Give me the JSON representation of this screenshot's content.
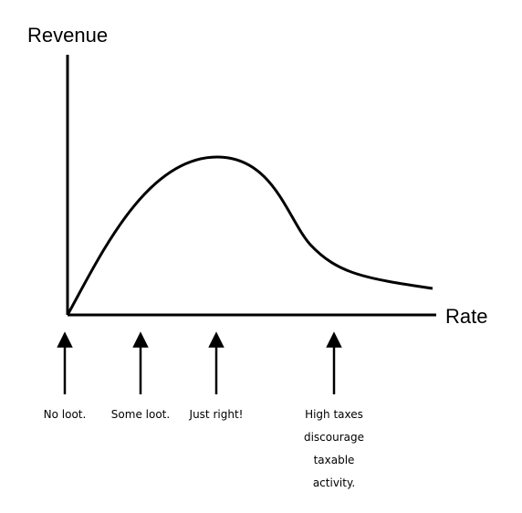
{
  "axes": {
    "y_label": "Revenue",
    "x_label": "Rate"
  },
  "annotations": [
    {
      "lines": [
        "No loot."
      ]
    },
    {
      "lines": [
        "Some loot."
      ]
    },
    {
      "lines": [
        "Just right!"
      ]
    },
    {
      "lines": [
        "High taxes",
        "discourage",
        "taxable",
        "activity."
      ]
    }
  ]
}
